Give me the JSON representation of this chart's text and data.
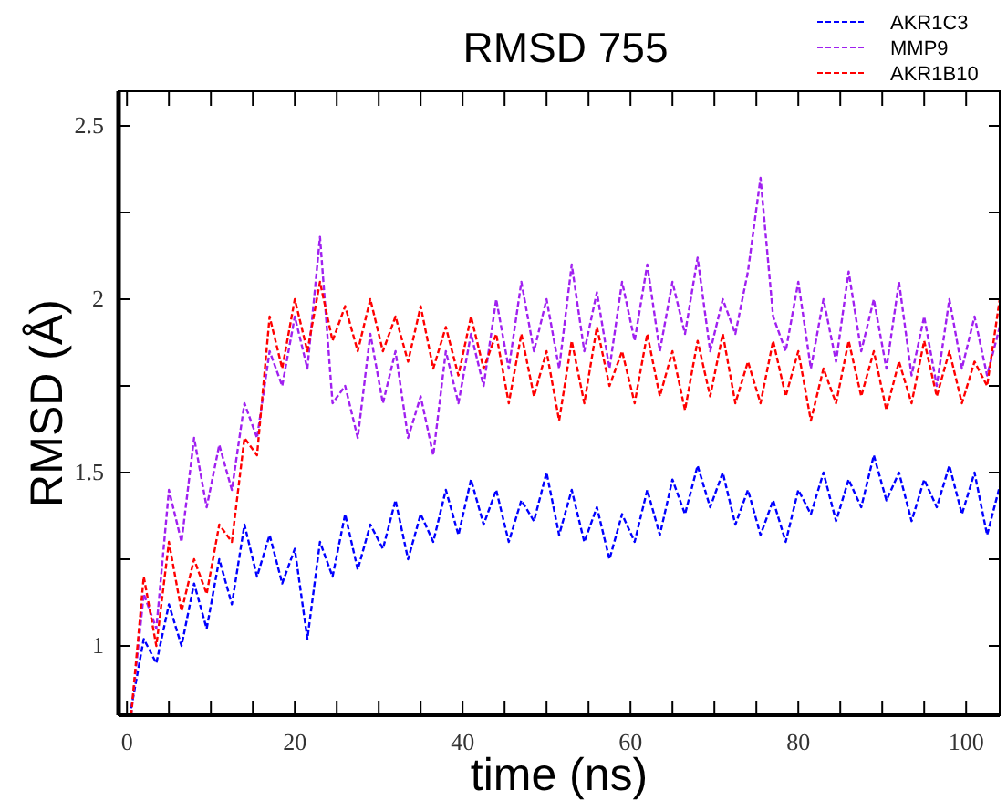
{
  "chart_data": {
    "type": "line",
    "title": "RMSD 755",
    "xlabel": "time (ns)",
    "ylabel": "RMSD (Å)",
    "x": [
      0.5,
      2,
      3.5,
      5,
      6.5,
      8,
      9.5,
      11,
      12.5,
      14,
      15.5,
      17,
      18.5,
      20,
      21.5,
      23,
      24.5,
      26,
      27.5,
      29,
      30.5,
      32,
      33.5,
      35,
      36.5,
      38,
      39.5,
      41,
      42.5,
      44,
      45.5,
      47,
      48.5,
      50,
      51.5,
      53,
      54.5,
      56,
      57.5,
      59,
      60.5,
      62,
      63.5,
      65,
      66.5,
      68,
      69.5,
      71,
      72.5,
      74,
      75.5,
      77,
      78.5,
      80,
      81.5,
      83,
      84.5,
      86,
      87.5,
      89,
      90.5,
      92,
      93.5,
      95,
      96.5,
      98,
      99.5,
      101,
      102.5,
      104
    ],
    "series": [
      {
        "name": "AKR1C3",
        "color": "#0000ff",
        "values": [
          0.82,
          1.02,
          0.95,
          1.12,
          1.0,
          1.18,
          1.05,
          1.25,
          1.12,
          1.35,
          1.2,
          1.32,
          1.18,
          1.28,
          1.02,
          1.3,
          1.2,
          1.38,
          1.22,
          1.35,
          1.28,
          1.42,
          1.25,
          1.38,
          1.3,
          1.45,
          1.32,
          1.48,
          1.35,
          1.45,
          1.3,
          1.42,
          1.36,
          1.5,
          1.32,
          1.45,
          1.3,
          1.4,
          1.25,
          1.38,
          1.3,
          1.45,
          1.32,
          1.48,
          1.38,
          1.52,
          1.4,
          1.5,
          1.35,
          1.45,
          1.32,
          1.42,
          1.3,
          1.45,
          1.38,
          1.5,
          1.36,
          1.48,
          1.4,
          1.55,
          1.42,
          1.5,
          1.36,
          1.48,
          1.4,
          1.52,
          1.38,
          1.5,
          1.32,
          1.46
        ]
      },
      {
        "name": "MMP9",
        "color": "#a020f0",
        "values": [
          0.8,
          1.15,
          1.05,
          1.45,
          1.3,
          1.6,
          1.4,
          1.58,
          1.45,
          1.7,
          1.6,
          1.85,
          1.75,
          1.95,
          1.8,
          2.18,
          1.7,
          1.75,
          1.6,
          1.9,
          1.7,
          1.85,
          1.6,
          1.72,
          1.55,
          1.85,
          1.7,
          1.9,
          1.75,
          2.0,
          1.8,
          2.05,
          1.85,
          2.0,
          1.8,
          2.1,
          1.85,
          2.02,
          1.8,
          2.05,
          1.88,
          2.1,
          1.85,
          2.05,
          1.9,
          2.12,
          1.85,
          2.0,
          1.9,
          2.08,
          2.35,
          1.95,
          1.85,
          2.05,
          1.8,
          2.0,
          1.82,
          2.08,
          1.85,
          2.0,
          1.8,
          2.05,
          1.78,
          1.95,
          1.75,
          2.0,
          1.8,
          1.95,
          1.78,
          1.92
        ]
      },
      {
        "name": "AKR1B10",
        "color": "#ff0000",
        "values": [
          0.8,
          1.2,
          1.0,
          1.3,
          1.1,
          1.25,
          1.15,
          1.35,
          1.3,
          1.6,
          1.55,
          1.95,
          1.8,
          2.0,
          1.85,
          2.05,
          1.88,
          1.98,
          1.85,
          2.0,
          1.85,
          1.95,
          1.82,
          1.98,
          1.8,
          1.92,
          1.78,
          1.95,
          1.8,
          1.9,
          1.7,
          1.9,
          1.72,
          1.85,
          1.65,
          1.88,
          1.7,
          1.92,
          1.75,
          1.85,
          1.7,
          1.9,
          1.72,
          1.85,
          1.68,
          1.88,
          1.72,
          1.9,
          1.7,
          1.82,
          1.7,
          1.88,
          1.72,
          1.85,
          1.65,
          1.8,
          1.7,
          1.88,
          1.72,
          1.85,
          1.68,
          1.82,
          1.7,
          1.88,
          1.72,
          1.85,
          1.7,
          1.82,
          1.75,
          2.0
        ]
      }
    ],
    "xlim": [
      -1,
      104
    ],
    "xticks": [
      0,
      {
        "value": 5,
        "label": null
      },
      {
        "value": 10,
        "label": null
      },
      {
        "value": 15,
        "label": null
      },
      20,
      {
        "value": 25,
        "label": null
      },
      {
        "value": 30,
        "label": null
      },
      {
        "value": 35,
        "label": null
      },
      40,
      {
        "value": 45,
        "label": null
      },
      {
        "value": 50,
        "label": null
      },
      {
        "value": 55,
        "label": null
      },
      60,
      {
        "value": 65,
        "label": null
      },
      {
        "value": 70,
        "label": null
      },
      {
        "value": 75,
        "label": null
      },
      80,
      {
        "value": 85,
        "label": null
      },
      {
        "value": 90,
        "label": null
      },
      {
        "value": 95,
        "label": null
      },
      100
    ],
    "ylim": [
      0.8,
      2.6
    ],
    "yticks": [
      1,
      {
        "value": 1.25,
        "label": null
      },
      1.5,
      {
        "value": 1.75,
        "label": null
      },
      2,
      {
        "value": 2.25,
        "label": null
      },
      2.5
    ],
    "grid": false,
    "legend": "top right",
    "line_style": "dashed",
    "marker": "none"
  }
}
